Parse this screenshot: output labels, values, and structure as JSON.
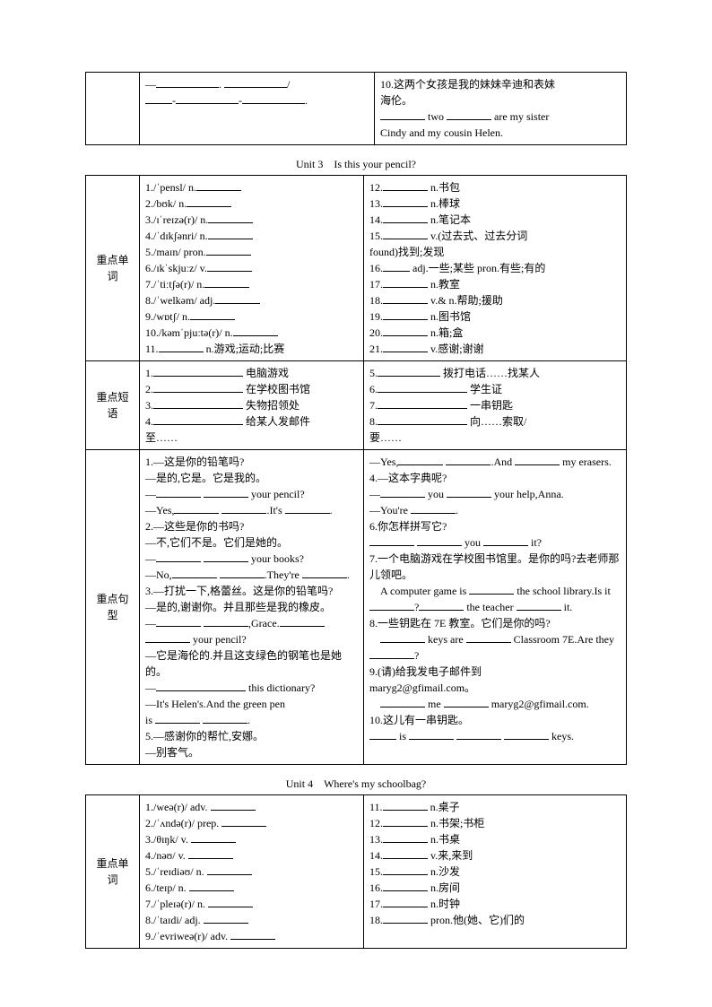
{
  "table1": {
    "left_lines": [
      "—____________. ____________/",
      "____-____________-____________."
    ],
    "right_lines": [
      "10.这两个女孩是我的妹妹辛迪和表妹",
      "海伦。",
      "________ two ________ are my sister",
      "Cindy and my cousin Helen."
    ]
  },
  "unit3_title": "Unit 3　Is this your pencil?",
  "unit3_words_label": "重点单词",
  "unit3_words_left": [
    "1./ˈpensl/ n.________",
    "2./bʊk/ n.________",
    "3./ɪˈreɪzə(r)/ n.________",
    "4./ˈdɪkʃənri/ n.________",
    "5./maɪn/ pron.________",
    "6./ɪkˈskjuːz/ v.________",
    "7./ˈtiːtʃə(r)/ n.________",
    "8./ˈwelkəm/ adj.________",
    "9./wɒtʃ/ n.________",
    "10./kəmˈpjuːtə(r)/ n.________",
    "11.________ n.游戏;运动;比赛"
  ],
  "unit3_words_right": [
    "12.________ n.书包",
    "13.________ n.棒球",
    "14.________ n.笔记本",
    "15.________ v.(过去式、过去分词",
    "found)找到;发现",
    "16.____ adj.一些;某些 pron.有些;有的",
    "17.________ n.教室",
    "18.________ v.& n.帮助;援助",
    "19.________ n.图书馆",
    "20.________ n.箱;盒",
    "21.________ v.感谢;谢谢"
  ],
  "unit3_phrases_label": "重点短语",
  "unit3_phrases_left": [
    "1.________________ 电脑游戏",
    "2.________________ 在学校图书馆",
    "3.________________ 失物招领处",
    "4.________________ 给某人发邮件",
    "至……"
  ],
  "unit3_phrases_right": [
    "5.____________ 拨打电话……找某人",
    "6.________________ 学生证",
    "7.________________ 一串钥匙",
    "8.________________ 向……索取/",
    "要……"
  ],
  "unit3_sentences_label": "重点句型",
  "unit3_sentences_left": [
    "1.—这是你的铅笔吗?",
    " —是的,它是。它是我的。",
    "—________ ________ your pencil?",
    "—Yes,________ ________.It's ________.",
    "2.—这些是你的书吗?",
    " —不,它们不是。它们是她的。",
    "—________ ________ your books?",
    "—No,________ ________.They're ________.",
    "3.—打扰一下,格蕾丝。这是你的铅笔吗?",
    " —是的,谢谢你。并且那些是我的橡皮。",
    "—________ ________,Grace.________ ________ your pencil?",
    "—它是海伦的.并且这支绿色的钢笔也是她的。",
    "—________________ this dictionary?",
    "—It's Helen's.And the green pen",
    "is ________ ________.",
    "5.—感谢你的帮忙,安娜。",
    " —别客气。"
  ],
  "unit3_sentences_right": [
    "—Yes,________ ________.And ________ my erasers.",
    "4.—这本字典呢?",
    "—________ you ________ your help,Anna.",
    "—You're ________.",
    "6.你怎样拼写它?",
    "________ ________ you ________ it?",
    "7.一个电脑游戏在学校图书馆里。是你的吗?去老师那儿领吧。",
    "　A computer game is ________ the school library.Is it ________?________ the teacher ________ it.",
    "8.一些钥匙在 7E 教室。它们是你的吗?",
    "　________ keys are ________ Classroom 7E.Are they ________?",
    "9.(请)给我发电子邮件到",
    "maryg2@gfimail.com。",
    "　________ me ________ maryg2@gfimail.com.",
    "10.这儿有一串钥匙。",
    "____ is ________ ________ ________ keys."
  ],
  "unit4_title": "Unit 4　Where's my schoolbag?",
  "unit4_words_label": "重点单词",
  "unit4_words_left": [
    "1./weə(r)/ adv. ________",
    "2./ˈʌndə(r)/ prep. ________",
    "3./θɪŋk/ v. ________",
    "4./nəʊ/ v. ________",
    "5./ˈreɪdiəʊ/ n. ________",
    "6./teɪp/ n. ________",
    "7./ˈpleɪə(r)/ n. ________",
    "8./ˈtaɪdi/ adj. ________",
    "9./ˈevriweə(r)/ adv. ________"
  ],
  "unit4_words_right": [
    "11.________ n.桌子",
    "12.________ n.书架;书柜",
    "13.________ n.书桌",
    "14.________ v.来,来到",
    "15.________ n.沙发",
    "16.________ n.房间",
    "17.________ n.时钟",
    "18.________ pron.他(她、它)们的"
  ]
}
